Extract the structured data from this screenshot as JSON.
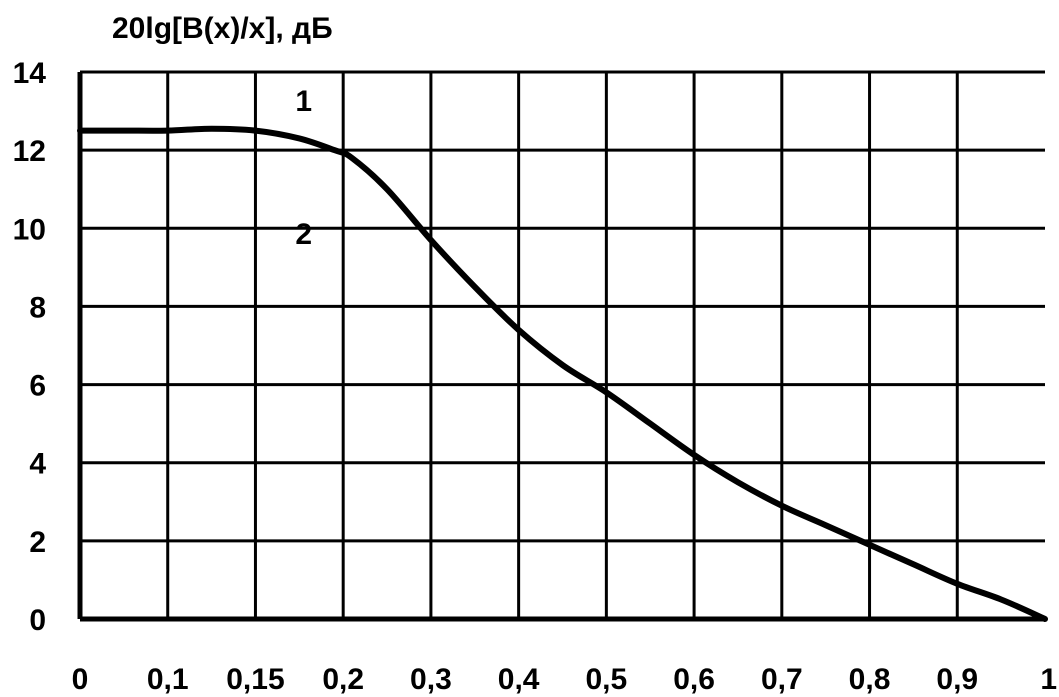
{
  "chart_data": {
    "type": "line",
    "title": "",
    "ylabel": "20lg[B(x)/x], дБ",
    "xlabel": "",
    "x_ticks": [
      {
        "value": 0,
        "label": "0"
      },
      {
        "value": 1,
        "label": "0,1"
      },
      {
        "value": 2,
        "label": "0,15"
      },
      {
        "value": 3,
        "label": "0,2"
      },
      {
        "value": 4,
        "label": "0,3"
      },
      {
        "value": 5,
        "label": "0,4"
      },
      {
        "value": 6,
        "label": "0,5"
      },
      {
        "value": 7,
        "label": "0,6"
      },
      {
        "value": 8,
        "label": "0,7"
      },
      {
        "value": 9,
        "label": "0,8"
      },
      {
        "value": 10,
        "label": "0,9"
      },
      {
        "value": 11,
        "label": "1"
      }
    ],
    "y_ticks": [
      0,
      2,
      4,
      6,
      8,
      10,
      12,
      14
    ],
    "xlim": [
      0,
      11
    ],
    "ylim": [
      0,
      14
    ],
    "grid": true,
    "annotations": [
      {
        "text": "1",
        "x": 2.55,
        "y": 13.0
      },
      {
        "text": "2",
        "x": 2.55,
        "y": 9.6
      }
    ],
    "series": [
      {
        "x": [
          0,
          0.5,
          1.0,
          1.5,
          2.0,
          2.5,
          2.9,
          3.1,
          3.5,
          4.0,
          4.5,
          5.0,
          5.5,
          6.0,
          6.5,
          7.0,
          7.5,
          8.0,
          8.5,
          9.0,
          9.5,
          10.0,
          10.5,
          11.0
        ],
        "y": [
          12.5,
          12.5,
          12.5,
          12.55,
          12.5,
          12.3,
          12.0,
          11.8,
          11.0,
          9.7,
          8.5,
          7.4,
          6.5,
          5.8,
          5.0,
          4.2,
          3.5,
          2.9,
          2.4,
          1.9,
          1.4,
          0.9,
          0.5,
          0.0
        ],
        "color": "#000000"
      }
    ]
  }
}
